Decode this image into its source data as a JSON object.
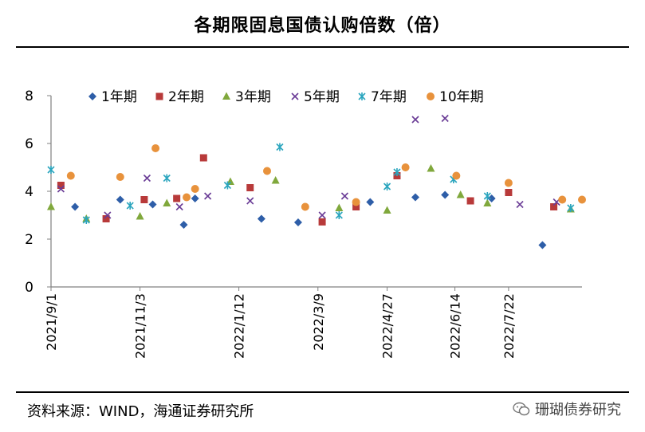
{
  "title": "各期限固息国债认购倍数（倍）",
  "source": "资料来源：WIND，海通证券研究所",
  "watermark": "珊瑚债券研究",
  "chart_data": {
    "type": "scatter",
    "title": "各期限固息国债认购倍数（倍）",
    "xlabel": "",
    "ylabel": "",
    "ylim": [
      0,
      8
    ],
    "yticks": [
      0,
      2,
      4,
      6,
      8
    ],
    "xlim": [
      "2021-09-01",
      "2022-09-12"
    ],
    "x_tick_labels": [
      "2021/9/1",
      "2021/11/3",
      "2022/1/12",
      "2022/3/9",
      "2022/4/27",
      "2022/6/14",
      "2022/7/22"
    ],
    "x_tick_dates": [
      "2021-09-01",
      "2021-11-03",
      "2022-01-12",
      "2022-03-09",
      "2022-04-27",
      "2022-06-14",
      "2022-07-22"
    ],
    "legend_position": "top",
    "series": [
      {
        "name": "1年期",
        "marker": "diamond",
        "color": "#2e5ea8",
        "points": [
          [
            "2021-09-18",
            3.35
          ],
          [
            "2021-10-20",
            3.65
          ],
          [
            "2021-11-12",
            3.45
          ],
          [
            "2021-12-04",
            2.6
          ],
          [
            "2021-12-12",
            3.7
          ],
          [
            "2022-01-28",
            2.85
          ],
          [
            "2022-02-23",
            2.7
          ],
          [
            "2022-04-15",
            3.55
          ],
          [
            "2022-05-17",
            3.75
          ],
          [
            "2022-06-07",
            3.85
          ],
          [
            "2022-07-10",
            3.7
          ],
          [
            "2022-08-15",
            1.75
          ]
        ]
      },
      {
        "name": "2年期",
        "marker": "square",
        "color": "#b83a3a",
        "points": [
          [
            "2021-09-08",
            4.25
          ],
          [
            "2021-10-10",
            2.85
          ],
          [
            "2021-11-06",
            3.65
          ],
          [
            "2021-11-29",
            3.7
          ],
          [
            "2021-12-18",
            5.4
          ],
          [
            "2022-01-20",
            4.15
          ],
          [
            "2022-03-12",
            2.72
          ],
          [
            "2022-04-05",
            3.35
          ],
          [
            "2022-05-04",
            4.65
          ],
          [
            "2022-06-25",
            3.6
          ],
          [
            "2022-07-22",
            3.95
          ],
          [
            "2022-08-23",
            3.35
          ]
        ]
      },
      {
        "name": "3年期",
        "marker": "triangle",
        "color": "#80a83c",
        "points": [
          [
            "2021-09-01",
            3.35
          ],
          [
            "2021-09-26",
            2.85
          ],
          [
            "2021-11-03",
            2.95
          ],
          [
            "2021-11-22",
            3.5
          ],
          [
            "2022-01-06",
            4.4
          ],
          [
            "2022-02-07",
            4.45
          ],
          [
            "2022-03-24",
            3.3
          ],
          [
            "2022-04-27",
            3.2
          ],
          [
            "2022-05-28",
            4.95
          ],
          [
            "2022-06-18",
            3.85
          ],
          [
            "2022-07-07",
            3.5
          ],
          [
            "2022-09-04",
            3.25
          ]
        ]
      },
      {
        "name": "5年期",
        "marker": "x",
        "color": "#6a3c96",
        "points": [
          [
            "2021-09-08",
            4.1
          ],
          [
            "2021-10-11",
            3.0
          ],
          [
            "2021-11-08",
            4.55
          ],
          [
            "2021-12-01",
            3.35
          ],
          [
            "2021-12-21",
            3.8
          ],
          [
            "2022-01-20",
            3.6
          ],
          [
            "2022-03-12",
            3.0
          ],
          [
            "2022-03-28",
            3.8
          ],
          [
            "2022-05-17",
            7.0
          ],
          [
            "2022-06-07",
            7.05
          ],
          [
            "2022-07-30",
            3.45
          ],
          [
            "2022-08-25",
            3.55
          ]
        ]
      },
      {
        "name": "7年期",
        "marker": "star",
        "color": "#2aa5be",
        "points": [
          [
            "2021-09-01",
            4.9
          ],
          [
            "2021-09-26",
            2.8
          ],
          [
            "2021-10-27",
            3.4
          ],
          [
            "2021-11-22",
            4.55
          ],
          [
            "2022-01-04",
            4.25
          ],
          [
            "2022-02-10",
            5.85
          ],
          [
            "2022-03-24",
            3.0
          ],
          [
            "2022-04-27",
            4.2
          ],
          [
            "2022-05-04",
            4.8
          ],
          [
            "2022-06-13",
            4.5
          ],
          [
            "2022-07-07",
            3.8
          ],
          [
            "2022-09-04",
            3.3
          ]
        ]
      },
      {
        "name": "10年期",
        "marker": "circle",
        "color": "#e8923c",
        "points": [
          [
            "2021-09-15",
            4.65
          ],
          [
            "2021-10-20",
            4.6
          ],
          [
            "2021-11-14",
            5.8
          ],
          [
            "2021-12-06",
            3.75
          ],
          [
            "2021-12-12",
            4.1
          ],
          [
            "2022-02-01",
            4.85
          ],
          [
            "2022-02-28",
            3.35
          ],
          [
            "2022-04-05",
            3.55
          ],
          [
            "2022-05-10",
            5.0
          ],
          [
            "2022-06-15",
            4.65
          ],
          [
            "2022-07-22",
            4.35
          ],
          [
            "2022-08-29",
            3.65
          ],
          [
            "2022-09-12",
            3.65
          ]
        ]
      }
    ]
  }
}
